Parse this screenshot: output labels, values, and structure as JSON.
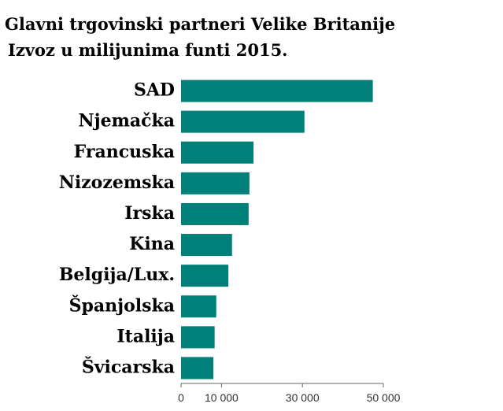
{
  "chart_data": {
    "type": "bar",
    "orientation": "horizontal",
    "title": "Glavni trgovinski partneri Velike Britanije",
    "subtitle": "Izvoz u milijunima funti 2015.",
    "categories": [
      "SAD",
      "Njemačka",
      "Francuska",
      "Nizozemska",
      "Irska",
      "Kina",
      "Belgija/Lux.",
      "Španjolska",
      "Italija",
      "Švicarska"
    ],
    "values": [
      47400,
      30500,
      17900,
      16900,
      16700,
      12600,
      11700,
      8700,
      8300,
      8000
    ],
    "color": "#008078",
    "xlim": [
      0,
      50000
    ],
    "xticks": [
      0,
      {
        "value": 10000,
        "label": "10 000"
      },
      {
        "value": 30000,
        "label": "30 000"
      },
      {
        "value": 50000,
        "label": "50 000"
      }
    ],
    "grid": false
  }
}
